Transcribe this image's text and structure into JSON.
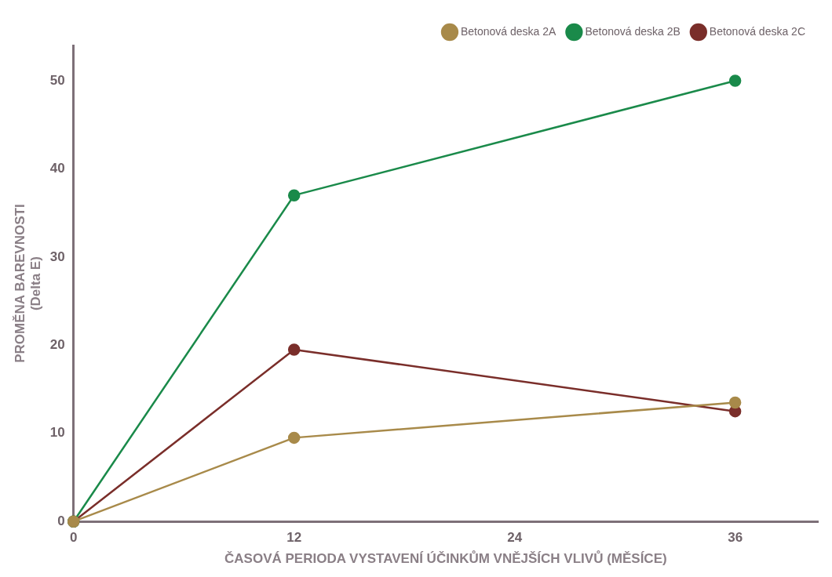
{
  "chart_data": {
    "type": "line",
    "xlabel": "ČASOVÁ PERIODA VYSTAVENÍ ÚČINKŮM VNĚJŠÍCH VLIVŮ (MĚSÍCE)",
    "ylabel": "PROMĚNA BAREVNOSTI\n(Delta E)",
    "x": [
      0,
      12,
      36
    ],
    "series": [
      {
        "name": "Betonová deska 2A",
        "color": "#a88a4a",
        "values": [
          0,
          9.5,
          13.5
        ]
      },
      {
        "name": "Betonová deska 2B",
        "color": "#1a8a4a",
        "values": [
          0,
          37,
          50
        ]
      },
      {
        "name": "Betonová deska 2C",
        "color": "#7a2e2a",
        "values": [
          0,
          19.5,
          12.5
        ]
      }
    ],
    "xlim": [
      0,
      40.5
    ],
    "xticks": [
      0,
      12,
      24,
      36
    ],
    "ylim": [
      0,
      54
    ],
    "yticks": [
      0,
      10,
      20,
      30,
      40,
      50
    ],
    "grid": false,
    "legend": "top right",
    "marker": "circle",
    "line_style": "solid"
  }
}
